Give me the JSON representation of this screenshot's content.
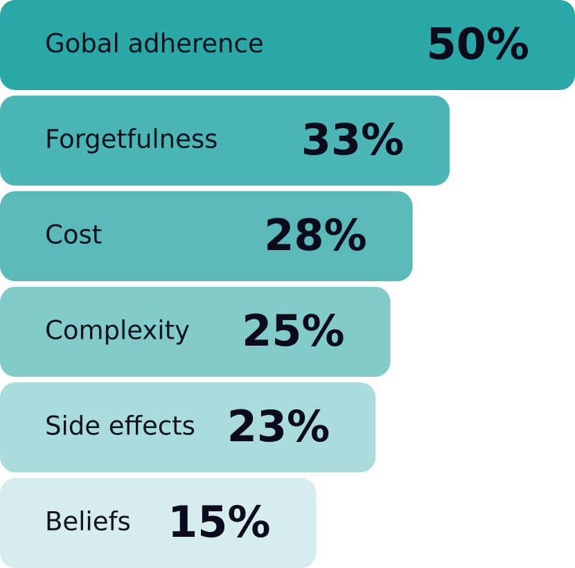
{
  "chart_data": {
    "type": "bar",
    "orientation": "horizontal",
    "categories": [
      "Gobal adherence",
      "Forgetfulness",
      "Cost",
      "Complexity",
      "Side effects",
      "Beliefs"
    ],
    "values": [
      50,
      33,
      28,
      25,
      23,
      15
    ],
    "value_labels": [
      "50%",
      "33%",
      "28%",
      "25%",
      "23%",
      "15%"
    ],
    "colors": [
      "#2aa7a7",
      "#4cb5b5",
      "#5cb9b9",
      "#83cbcb",
      "#aadcdc",
      "#d6eded"
    ]
  }
}
